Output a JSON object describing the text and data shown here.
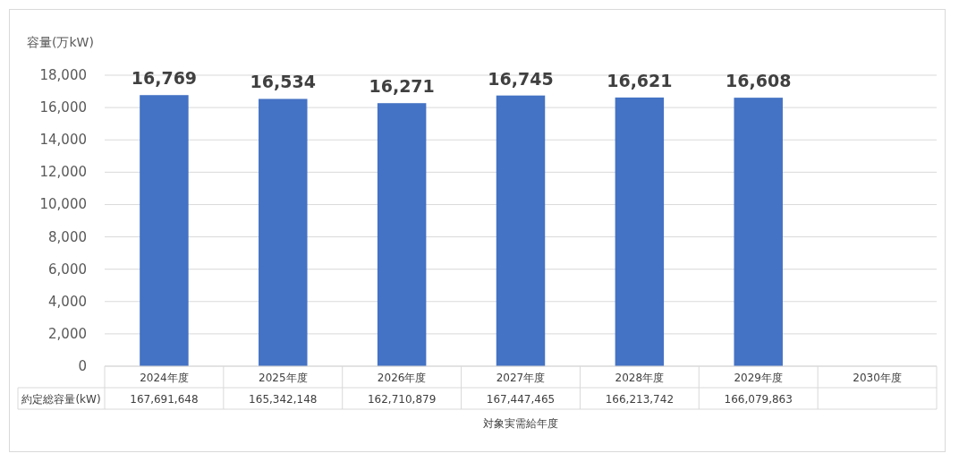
{
  "chart_data": {
    "type": "bar",
    "ylabel": "容量(万kW)",
    "xlabel": "対象実需給年度",
    "categories": [
      "2024年度",
      "2025年度",
      "2026年度",
      "2027年度",
      "2028年度",
      "2029年度",
      "2030年度"
    ],
    "values": [
      16769,
      16534,
      16271,
      16745,
      16621,
      16608,
      null
    ],
    "color": "#4472c4",
    "value_labels": [
      "16,769",
      "16,534",
      "16,271",
      "16,745",
      "16,621",
      "16,608",
      null
    ],
    "ylim": [
      0,
      18000
    ],
    "yticks": [
      0,
      {
        "value": 2000,
        "label": "2,000"
      },
      {
        "value": 4000,
        "label": "4,000"
      },
      {
        "value": 6000,
        "label": "6,000"
      },
      {
        "value": 8000,
        "label": "8,000"
      },
      {
        "value": 10000,
        "label": "10,000"
      },
      {
        "value": 12000,
        "label": "12,000"
      },
      {
        "value": 14000,
        "label": "14,000"
      },
      {
        "value": 16000,
        "label": "16,000"
      },
      {
        "value": 18000,
        "label": "18,000"
      }
    ],
    "grid": "y",
    "annotations": [
      "約定総容量(kW)",
      "167,691,648",
      "165,342,148",
      "162,710,879",
      "167,447,465",
      "166,213,742",
      "166,079,863"
    ]
  }
}
